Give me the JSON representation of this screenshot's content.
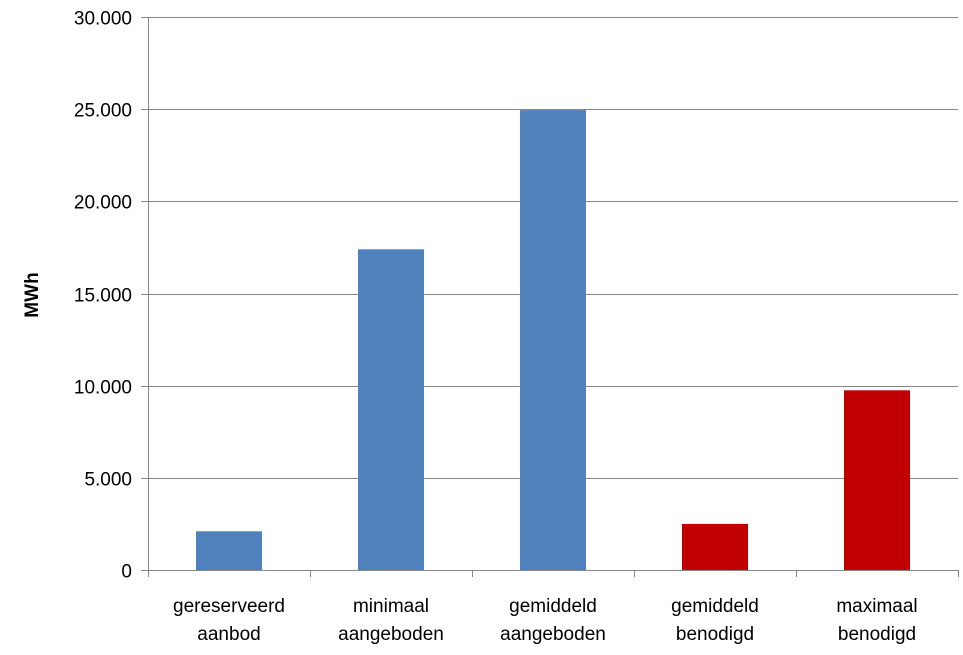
{
  "chart_data": {
    "type": "bar",
    "categories": [
      [
        "gereserveerd",
        "aanbod"
      ],
      [
        "minimaal",
        "aangeboden"
      ],
      [
        "gemiddeld",
        "aangeboden"
      ],
      [
        "gemiddeld",
        "benodigd"
      ],
      [
        "maximaal",
        "benodigd"
      ]
    ],
    "values": [
      2100,
      17400,
      24950,
      2500,
      9750
    ],
    "bar_colors": [
      "#4f81bd",
      "#4f81bd",
      "#4f81bd",
      "#c00000",
      "#c00000"
    ],
    "ylabel": "MWh",
    "ylim": [
      0,
      30000
    ],
    "yticks": [
      0,
      5000,
      10000,
      15000,
      20000,
      25000,
      30000
    ],
    "ytick_labels": [
      "0",
      "5.000",
      "10.000",
      "15.000",
      "20.000",
      "25.000",
      "30.000"
    ],
    "grid": true,
    "legend": "none"
  }
}
